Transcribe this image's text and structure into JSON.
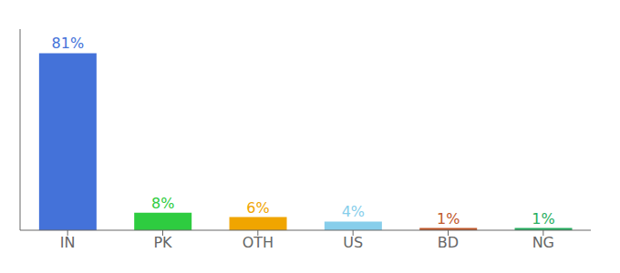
{
  "chart_data": {
    "type": "bar",
    "categories": [
      "IN",
      "PK",
      "OTH",
      "US",
      "BD",
      "NG"
    ],
    "values": [
      81,
      8,
      6,
      4,
      1,
      1
    ],
    "value_labels": [
      "81%",
      "8%",
      "6%",
      "4%",
      "1%",
      "1%"
    ],
    "colors": [
      "#4472d9",
      "#2ecc40",
      "#f0a500",
      "#87ceeb",
      "#c0582b",
      "#27ae60"
    ],
    "ylim": [
      0,
      92
    ],
    "data_labels": true,
    "grid": false,
    "tick_labels": "x"
  }
}
